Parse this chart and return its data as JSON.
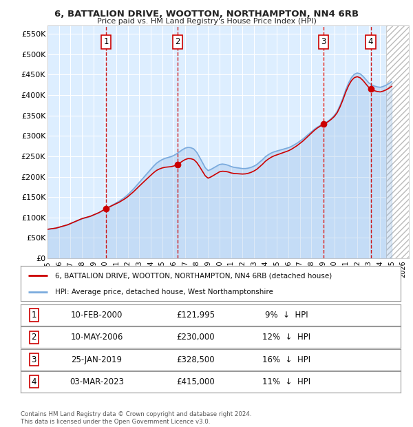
{
  "title1": "6, BATTALION DRIVE, WOOTTON, NORTHAMPTON, NN4 6RB",
  "title2": "Price paid vs. HM Land Registry's House Price Index (HPI)",
  "ylabel_ticks": [
    "£0",
    "£50K",
    "£100K",
    "£150K",
    "£200K",
    "£250K",
    "£300K",
    "£350K",
    "£400K",
    "£450K",
    "£500K",
    "£550K"
  ],
  "ylabel_values": [
    0,
    50000,
    100000,
    150000,
    200000,
    250000,
    300000,
    350000,
    400000,
    450000,
    500000,
    550000
  ],
  "ylim": [
    0,
    570000
  ],
  "xlim_start": 1995.0,
  "xlim_end": 2026.5,
  "hatch_start": 2024.5,
  "sales": [
    {
      "num": 1,
      "date": "10-FEB-2000",
      "year": 2000.11,
      "price": 121995,
      "pct": "9%",
      "dir": "↓"
    },
    {
      "num": 2,
      "date": "10-MAY-2006",
      "year": 2006.36,
      "price": 230000,
      "pct": "12%",
      "dir": "↓"
    },
    {
      "num": 3,
      "date": "25-JAN-2019",
      "year": 2019.07,
      "price": 328500,
      "pct": "16%",
      "dir": "↓"
    },
    {
      "num": 4,
      "date": "03-MAR-2023",
      "year": 2023.17,
      "price": 415000,
      "pct": "11%",
      "dir": "↓"
    }
  ],
  "hpi_color": "#7aaadd",
  "sale_line_color": "#cc0000",
  "sale_marker_color": "#cc0000",
  "vline_color": "#cc0000",
  "bg_color": "#ddeeff",
  "grid_color": "#ffffff",
  "hatch_color": "#aaaaaa",
  "footer": "Contains HM Land Registry data © Crown copyright and database right 2024.\nThis data is licensed under the Open Government Licence v3.0.",
  "legend1": "6, BATTALION DRIVE, WOOTTON, NORTHAMPTON, NN4 6RB (detached house)",
  "legend2": "HPI: Average price, detached house, West Northamptonshire",
  "hpi_data_years": [
    1995,
    1995.25,
    1995.5,
    1995.75,
    1996,
    1996.25,
    1996.5,
    1996.75,
    1997,
    1997.25,
    1997.5,
    1997.75,
    1998,
    1998.25,
    1998.5,
    1998.75,
    1999,
    1999.25,
    1999.5,
    1999.75,
    2000,
    2000.25,
    2000.5,
    2000.75,
    2001,
    2001.25,
    2001.5,
    2001.75,
    2002,
    2002.25,
    2002.5,
    2002.75,
    2003,
    2003.25,
    2003.5,
    2003.75,
    2004,
    2004.25,
    2004.5,
    2004.75,
    2005,
    2005.25,
    2005.5,
    2005.75,
    2006,
    2006.25,
    2006.5,
    2006.75,
    2007,
    2007.25,
    2007.5,
    2007.75,
    2008,
    2008.25,
    2008.5,
    2008.75,
    2009,
    2009.25,
    2009.5,
    2009.75,
    2010,
    2010.25,
    2010.5,
    2010.75,
    2011,
    2011.25,
    2011.5,
    2011.75,
    2012,
    2012.25,
    2012.5,
    2012.75,
    2013,
    2013.25,
    2013.5,
    2013.75,
    2014,
    2014.25,
    2014.5,
    2014.75,
    2015,
    2015.25,
    2015.5,
    2015.75,
    2016,
    2016.25,
    2016.5,
    2016.75,
    2017,
    2017.25,
    2017.5,
    2017.75,
    2018,
    2018.25,
    2018.5,
    2018.75,
    2019,
    2019.25,
    2019.5,
    2019.75,
    2020,
    2020.25,
    2020.5,
    2020.75,
    2021,
    2021.25,
    2021.5,
    2021.75,
    2022,
    2022.25,
    2022.5,
    2022.75,
    2023,
    2023.25,
    2023.5,
    2023.75,
    2024,
    2024.25,
    2024.5,
    2024.75,
    2025
  ],
  "hpi_data_values": [
    71000,
    72000,
    73000,
    74000,
    76000,
    78000,
    80000,
    82000,
    85000,
    88000,
    91000,
    94000,
    97000,
    99000,
    101000,
    103000,
    106000,
    109000,
    112000,
    116000,
    120000,
    124000,
    128000,
    132000,
    136000,
    140000,
    145000,
    150000,
    156000,
    163000,
    170000,
    178000,
    186000,
    194000,
    202000,
    210000,
    218000,
    226000,
    233000,
    238000,
    242000,
    245000,
    247000,
    249000,
    252000,
    256000,
    261000,
    266000,
    270000,
    272000,
    271000,
    268000,
    260000,
    248000,
    235000,
    222000,
    215000,
    218000,
    222000,
    226000,
    230000,
    231000,
    230000,
    228000,
    225000,
    223000,
    222000,
    221000,
    220000,
    220000,
    221000,
    223000,
    226000,
    230000,
    236000,
    242000,
    249000,
    254000,
    258000,
    261000,
    263000,
    265000,
    267000,
    269000,
    271000,
    274000,
    278000,
    282000,
    287000,
    292000,
    298000,
    304000,
    310000,
    316000,
    321000,
    325000,
    328000,
    332000,
    337000,
    343000,
    350000,
    360000,
    375000,
    393000,
    413000,
    430000,
    443000,
    451000,
    454000,
    452000,
    446000,
    438000,
    430000,
    425000,
    422000,
    420000,
    419000,
    421000,
    424000,
    428000,
    433000
  ]
}
